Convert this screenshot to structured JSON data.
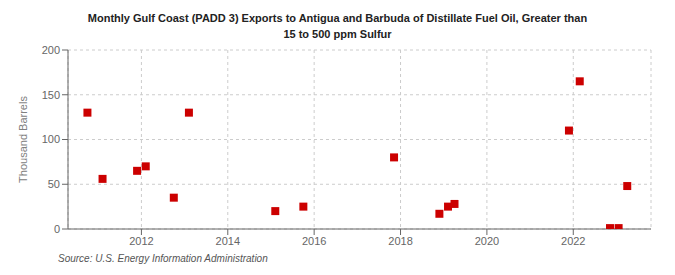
{
  "chart_data": {
    "type": "scatter",
    "title": "Monthly Gulf Coast (PADD 3) Exports to Antigua and Barbuda of Distillate Fuel Oil, Greater than\n15 to 500 ppm Sulfur",
    "ylabel": "Thousand Barrels",
    "annotations": [
      "Source: U.S. Energy Information Administration"
    ],
    "color": "#cc0000",
    "marker": "square",
    "grid": true,
    "xlim": [
      2010.3,
      2023.8
    ],
    "xticks": [
      2012,
      2014,
      2016,
      2018,
      2020,
      2022
    ],
    "ylim": [
      0,
      200
    ],
    "yticks": [
      0,
      50,
      100,
      150,
      200
    ],
    "x": [
      2010.75,
      2011.1,
      2011.9,
      2012.1,
      2012.75,
      2013.1,
      2015.1,
      2015.75,
      2017.85,
      2018.9,
      2019.1,
      2019.25,
      2021.9,
      2022.15,
      2022.85,
      2023.05,
      2023.25
    ],
    "values": [
      130,
      56,
      65,
      70,
      35,
      130,
      20,
      25,
      80,
      17,
      25,
      28,
      110,
      165,
      1,
      1,
      48
    ]
  }
}
